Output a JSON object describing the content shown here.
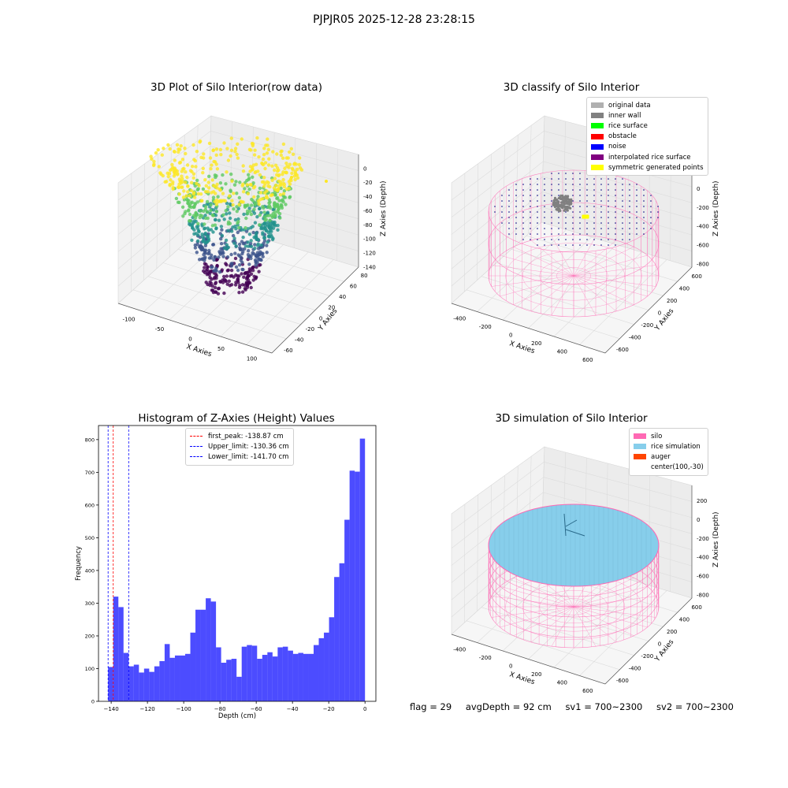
{
  "suptitle": "PJPJR05 2025-12-28 23:28:15",
  "panels": {
    "raw": {
      "title": "3D Plot of Silo Interior(row data)",
      "xlabel": "X Axies",
      "ylabel": "Y Axies",
      "zlabel": "Z Axies (Depth)",
      "xticks": [
        "-100",
        "-50",
        "0",
        "50",
        "100"
      ],
      "yticks": [
        "-60",
        "-40",
        "-20",
        "0",
        "20",
        "40",
        "60",
        "80"
      ],
      "zticks": [
        "0",
        "-20",
        "-40",
        "-60",
        "-80",
        "-100",
        "-120",
        "-140"
      ],
      "colormap": [
        "#440154",
        "#3b528b",
        "#21918c",
        "#5ec962",
        "#fde725"
      ]
    },
    "classify": {
      "title": "3D classify of Silo Interior",
      "xlabel": "X Axies",
      "ylabel": "Y Axies",
      "zlabel": "Z Axies (Depth)",
      "xticks": [
        "-400",
        "-200",
        "0",
        "200",
        "400",
        "600"
      ],
      "yticks": [
        "-600",
        "-400",
        "-200",
        "0",
        "200",
        "400",
        "600"
      ],
      "zticks": [
        "200",
        "0",
        "-200",
        "-400",
        "-600",
        "-800"
      ],
      "legend": [
        {
          "label": "original data",
          "color": "#b0b0b0"
        },
        {
          "label": "inner wall",
          "color": "#808080"
        },
        {
          "label": "rice surface",
          "color": "#00ff00"
        },
        {
          "label": "obstacle",
          "color": "#ff0000"
        },
        {
          "label": "noise",
          "color": "#0000ff"
        },
        {
          "label": "interpolated rice surface",
          "color": "#800080"
        },
        {
          "label": "symmetric generated points",
          "color": "#ffff00"
        }
      ],
      "wire_color": "#ff69b4"
    },
    "simulation": {
      "title": "3D simulation of Silo Interior",
      "xlabel": "X Axies",
      "ylabel": "Y Axies",
      "zlabel": "Z Axies (Depth)",
      "xticks": [
        "-400",
        "-200",
        "0",
        "200",
        "400",
        "600"
      ],
      "yticks": [
        "-600",
        "-400",
        "-200",
        "0",
        "200",
        "400",
        "600"
      ],
      "zticks": [
        "200",
        "0",
        "-200",
        "-400",
        "-600",
        "-800"
      ],
      "legend": [
        {
          "label": "silo",
          "color": "#ff69b4"
        },
        {
          "label": "rice simulation",
          "color": "#87ceeb"
        },
        {
          "label": "auger",
          "color": "#ff4500"
        },
        {
          "label": "center(100,-30)",
          "color": "transparent"
        }
      ]
    }
  },
  "footer": {
    "flag": "flag = 29",
    "avg": "avgDepth = 92 cm",
    "sv1": "sv1 = 700~2300",
    "sv2": "sv2 = 700~2300"
  },
  "chart_data": {
    "type": "bar",
    "title": "Histogram of Z-Axies (Height) Values",
    "xlabel": "Depth (cm)",
    "ylabel": "Frequency",
    "xlim": [
      -147,
      6
    ],
    "ylim": [
      0,
      843
    ],
    "xticks": [
      -140,
      -120,
      -100,
      -80,
      -60,
      -40,
      -20,
      0
    ],
    "yticks": [
      0,
      100,
      200,
      300,
      400,
      500,
      600,
      700,
      800
    ],
    "bar_color": "#0000ff",
    "bin_start": -141.7,
    "bin_width": 2.834,
    "values": [
      105,
      320,
      288,
      148,
      107,
      112,
      88,
      100,
      90,
      107,
      123,
      175,
      133,
      140,
      140,
      145,
      210,
      280,
      280,
      315,
      305,
      165,
      118,
      127,
      130,
      75,
      167,
      172,
      170,
      130,
      142,
      150,
      137,
      165,
      167,
      155,
      145,
      148,
      145,
      145,
      172,
      193,
      210,
      257,
      380,
      422,
      555,
      705,
      702,
      803
    ],
    "vlines": [
      {
        "label": "first_peak: -138.87 cm",
        "x": -138.87,
        "color": "#ff0000"
      },
      {
        "label": "Upper_limit: -130.36 cm",
        "x": -130.36,
        "color": "#0000ff"
      },
      {
        "label": "Lower_limit: -141.70 cm",
        "x": -141.7,
        "color": "#0000ff"
      }
    ]
  }
}
